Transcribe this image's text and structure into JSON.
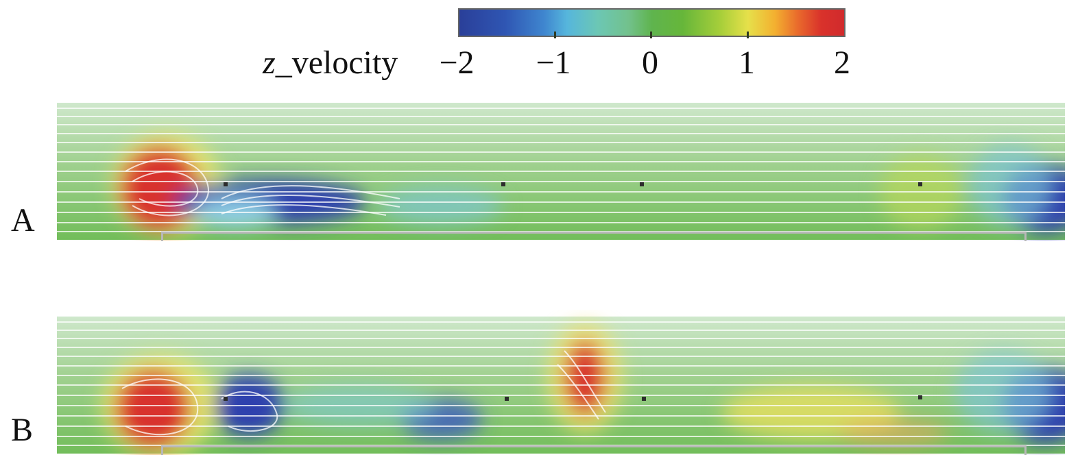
{
  "colorbar": {
    "title_var": "z",
    "title_rest": "_velocity",
    "labels": [
      "−2",
      "−1",
      "0",
      "1",
      "2"
    ],
    "range": [
      -2,
      2
    ]
  },
  "panels": [
    {
      "label": "A"
    },
    {
      "label": "B"
    }
  ]
}
